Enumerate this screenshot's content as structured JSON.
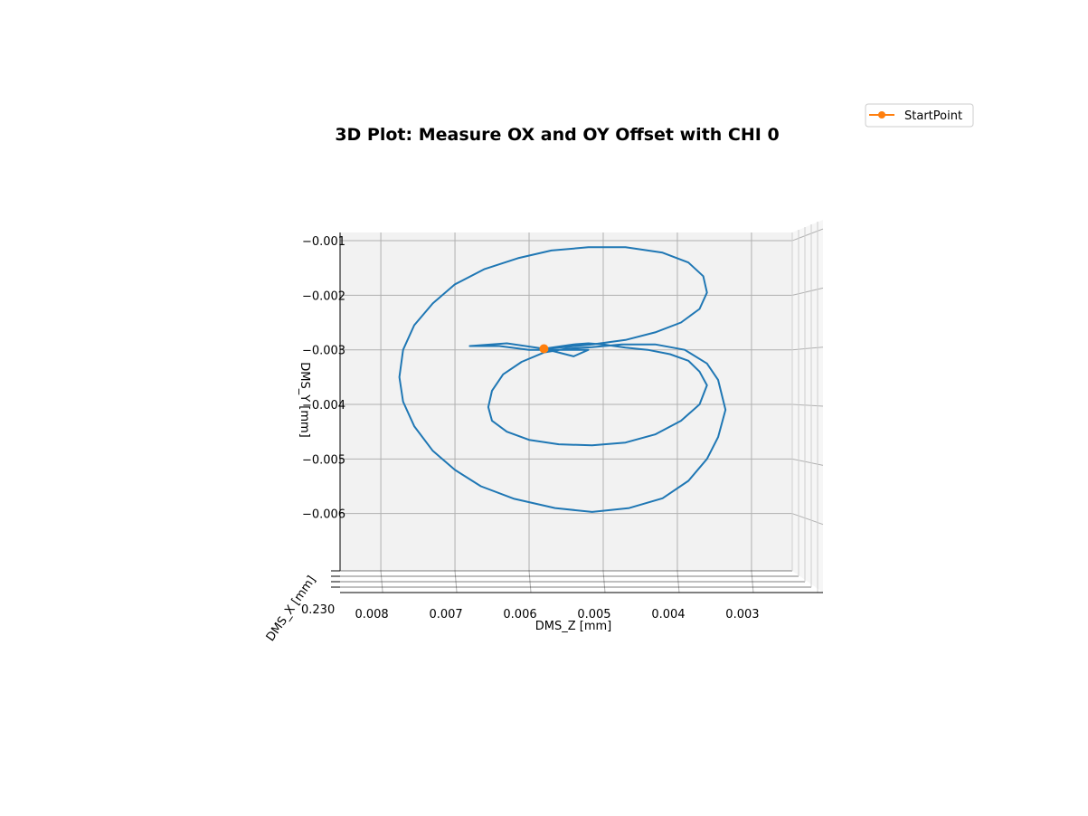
{
  "chart_data": {
    "type": "line",
    "projection": "3d",
    "title": "3D Plot: Measure OX and OY Offset with CHI 0",
    "xlabel": "DMS_Z [mm]",
    "ylabel": "DMS_Y [mm]",
    "zlabel": "DMS_X [mm]",
    "xlim": [
      0.00855,
      0.00245
    ],
    "ylim": [
      -0.00705,
      -0.00085
    ],
    "x_ticks": [
      0.008,
      0.007,
      0.006,
      0.005,
      0.004,
      0.003
    ],
    "x_tick_labels": [
      "0.008",
      "0.007",
      "0.006",
      "0.005",
      "0.004",
      "0.003"
    ],
    "y_ticks": [
      -0.001,
      -0.002,
      -0.003,
      -0.004,
      -0.005,
      -0.006
    ],
    "y_tick_labels": [
      "−0.001",
      "−0.002",
      "−0.003",
      "−0.004",
      "−0.005",
      "−0.006"
    ],
    "z_tick_labels_visible": "0.230",
    "grid": true,
    "legend": {
      "position": "top-right",
      "entries": [
        "StartPoint"
      ]
    },
    "colors": {
      "trajectory": "#1f77b4",
      "start_point": "#ff7f0e",
      "pane": "#f2f2f2",
      "grid": "#b0b0b0"
    },
    "series": [
      {
        "name": "",
        "kind": "trajectory",
        "x": [
          0.0058,
          0.0063,
          0.0068,
          0.0064,
          0.006,
          0.0052,
          0.0054,
          0.0058,
          0.0054,
          0.0052,
          0.005,
          0.0047,
          0.0044,
          0.0041,
          0.00385,
          0.0037,
          0.0036,
          0.0037,
          0.00395,
          0.0043,
          0.0047,
          0.00515,
          0.0056,
          0.006,
          0.0063,
          0.0065,
          0.00655,
          0.0065,
          0.00635,
          0.0061,
          0.0058,
          0.0055,
          0.00515,
          0.00475,
          0.0043,
          0.0039,
          0.0036,
          0.00345,
          0.00335,
          0.00345,
          0.0036,
          0.00385,
          0.0042,
          0.00465,
          0.00515,
          0.00565,
          0.0062,
          0.00665,
          0.007,
          0.0073,
          0.00755,
          0.0077,
          0.00775,
          0.0077,
          0.00755,
          0.0073,
          0.007,
          0.0066,
          0.00615,
          0.0057,
          0.0052,
          0.0047,
          0.0042,
          0.00385,
          0.00365,
          0.0036,
          0.0037,
          0.00395,
          0.0043,
          0.0047,
          0.00515,
          0.0056,
          0.0058
        ],
        "y": [
          -0.00298,
          -0.00288,
          -0.00293,
          -0.00293,
          -0.003,
          -0.003,
          -0.00312,
          -0.00298,
          -0.0029,
          -0.00288,
          -0.0029,
          -0.00296,
          -0.003,
          -0.00308,
          -0.0032,
          -0.0034,
          -0.00365,
          -0.004,
          -0.0043,
          -0.00455,
          -0.0047,
          -0.00475,
          -0.00473,
          -0.00465,
          -0.0045,
          -0.0043,
          -0.00405,
          -0.00375,
          -0.00345,
          -0.00322,
          -0.00305,
          -0.00298,
          -0.00295,
          -0.0029,
          -0.0029,
          -0.003,
          -0.00325,
          -0.00355,
          -0.0041,
          -0.0046,
          -0.005,
          -0.0054,
          -0.00572,
          -0.0059,
          -0.00597,
          -0.0059,
          -0.00573,
          -0.0055,
          -0.0052,
          -0.00485,
          -0.0044,
          -0.00395,
          -0.0035,
          -0.003,
          -0.00255,
          -0.00215,
          -0.0018,
          -0.00152,
          -0.00132,
          -0.00118,
          -0.00112,
          -0.00112,
          -0.00122,
          -0.0014,
          -0.00165,
          -0.00195,
          -0.00225,
          -0.0025,
          -0.00268,
          -0.00282,
          -0.0029,
          -0.00296,
          -0.00298
        ]
      },
      {
        "name": "StartPoint",
        "kind": "marker",
        "x": [
          0.0058
        ],
        "y": [
          -0.00298
        ]
      }
    ]
  }
}
